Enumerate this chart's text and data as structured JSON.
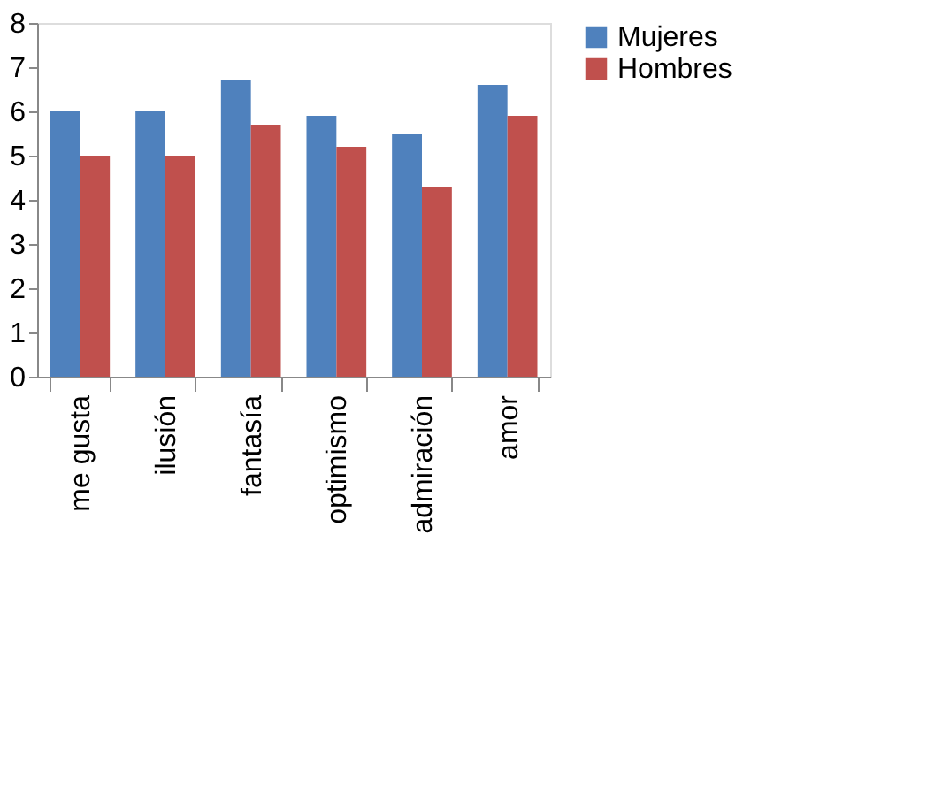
{
  "chart_data": {
    "type": "bar",
    "categories": [
      "me gusta",
      "ilusión",
      "fantasía",
      "optimismo",
      "admiración",
      "amor"
    ],
    "series": [
      {
        "name": "Mujeres",
        "color": "#4f81bd",
        "values": [
          6.0,
          6.0,
          6.7,
          5.9,
          5.5,
          6.6
        ]
      },
      {
        "name": "Hombres",
        "color": "#c0504d",
        "values": [
          5.0,
          5.0,
          5.7,
          5.2,
          4.3,
          5.9
        ]
      }
    ],
    "ylim": [
      0,
      8
    ],
    "yticks": [
      0,
      1,
      2,
      3,
      4,
      5,
      6,
      7,
      8
    ],
    "grid": false,
    "legend": "right"
  }
}
